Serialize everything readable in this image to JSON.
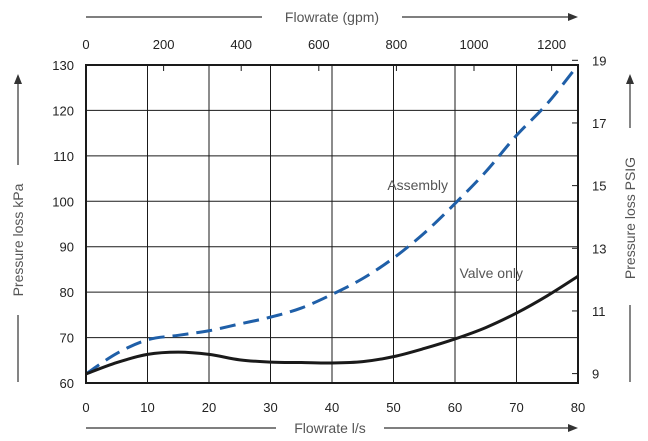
{
  "chart_data": {
    "type": "line",
    "x_bottom": {
      "label": "Flowrate l/s",
      "range": [
        0,
        80
      ],
      "ticks": [
        0,
        10,
        20,
        30,
        40,
        50,
        60,
        70,
        80
      ]
    },
    "x_top": {
      "label": "Flowrate (gpm)",
      "range": [
        0,
        1268
      ],
      "ticks": [
        0,
        200,
        400,
        600,
        800,
        1000,
        1200
      ]
    },
    "y_left": {
      "label": "Pressure loss kPa",
      "range": [
        60,
        130
      ],
      "ticks": [
        60,
        70,
        80,
        90,
        100,
        110,
        120,
        130
      ]
    },
    "y_right": {
      "label": "Pressure loss PSIG",
      "range": [
        8.7,
        18.85
      ],
      "ticks": [
        9,
        11,
        13,
        15,
        17,
        19
      ]
    },
    "grid": true,
    "series": [
      {
        "name": "Assembly",
        "style": "dashed",
        "color": "#1f5fa8",
        "x": [
          0,
          5,
          10,
          15,
          20,
          25,
          30,
          35,
          40,
          45,
          50,
          55,
          60,
          65,
          70,
          75,
          80
        ],
        "y": [
          62,
          66.5,
          69.5,
          70.5,
          71.5,
          73,
          74.5,
          76.5,
          79.5,
          83,
          87.5,
          93,
          99.5,
          106.5,
          114.5,
          121.5,
          130
        ]
      },
      {
        "name": "Valve only",
        "style": "solid",
        "color": "#1a1a1a",
        "x": [
          0,
          5,
          10,
          15,
          20,
          25,
          30,
          35,
          40,
          45,
          50,
          55,
          60,
          65,
          70,
          75,
          80
        ],
        "y": [
          62,
          64.5,
          66.3,
          66.8,
          66.3,
          65.1,
          64.6,
          64.5,
          64.4,
          64.7,
          65.8,
          67.6,
          69.7,
          72.2,
          75.4,
          79.2,
          83.5
        ]
      }
    ]
  }
}
